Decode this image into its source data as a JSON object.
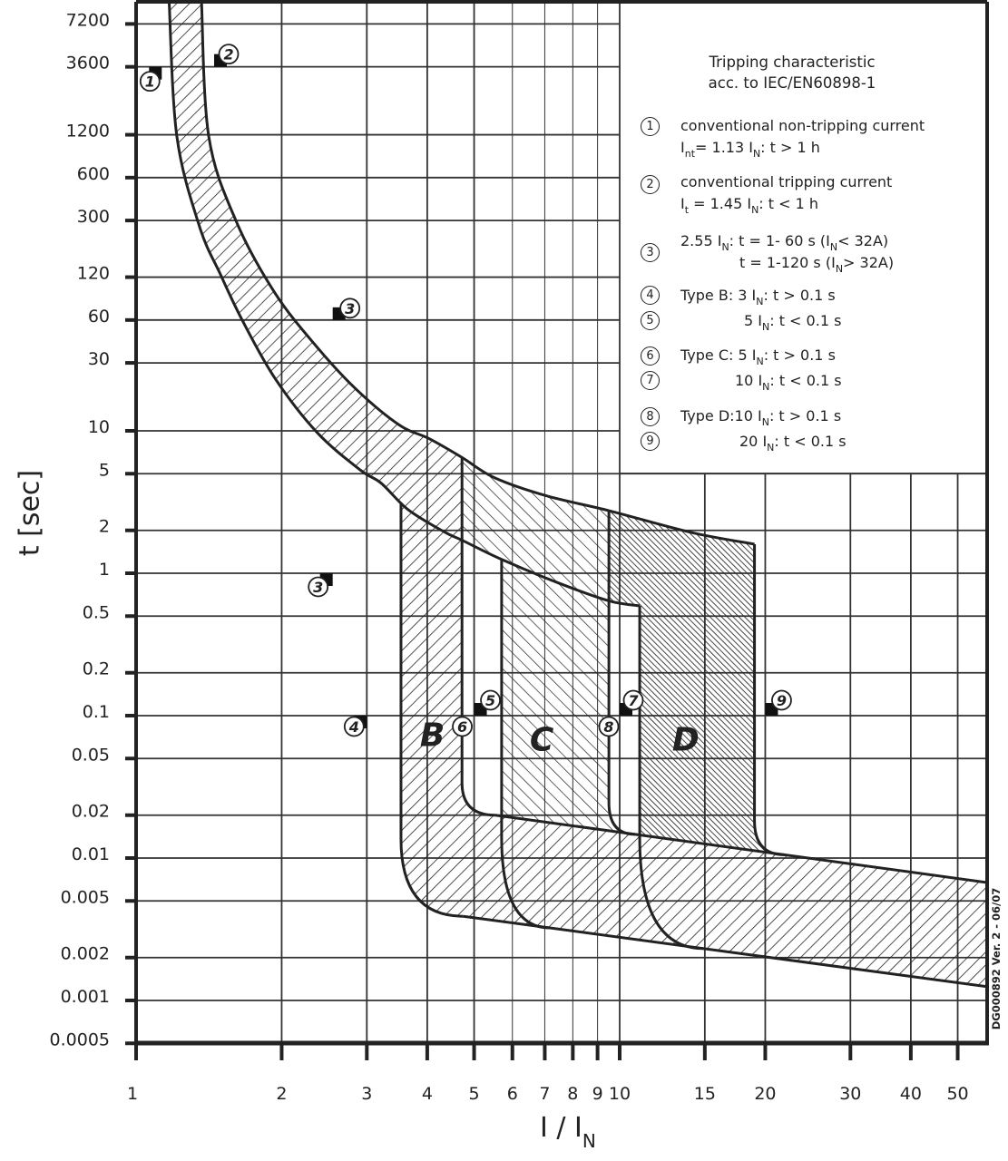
{
  "chart_data": {
    "type": "area",
    "title": [
      "Tripping characteristic",
      "acc. to IEC/EN60898-1"
    ],
    "xlabel": {
      "main": "I / I",
      "sub": "N"
    },
    "ylabel": "t [sec]",
    "x_scale": "log",
    "y_scale": "log",
    "xlim": [
      1,
      57.5
    ],
    "ylim": [
      0.0005,
      10600
    ],
    "grid": true,
    "x_ticks": [
      1,
      2,
      3,
      4,
      5,
      6,
      7,
      8,
      9,
      10,
      15,
      20,
      30,
      40,
      50
    ],
    "x_tick_labels": [
      "1",
      "2",
      "3",
      "4",
      "5",
      "6",
      "7",
      "8",
      "9",
      "10",
      "15",
      "20",
      "30",
      "40",
      "50"
    ],
    "y_ticks": [
      7200,
      3600,
      1200,
      600,
      300,
      120,
      60,
      30,
      10,
      5,
      2,
      1,
      0.5,
      0.2,
      0.1,
      0.05,
      0.02,
      0.01,
      0.005,
      0.002,
      0.001,
      0.0005
    ],
    "y_tick_labels": [
      "7200",
      "3600",
      "1200",
      "600",
      "300",
      "120",
      "60",
      "30",
      "10",
      "5",
      "2",
      "1",
      "0.5",
      "0.2",
      "0.1",
      "0.05",
      "0.02",
      "0.01",
      "0.005",
      "0.002",
      "0.001",
      "0.0005"
    ],
    "thermal_upper": [
      [
        1.365,
        10600
      ],
      [
        1.413,
        1175
      ],
      [
        1.608,
        300
      ],
      [
        1.937,
        92.9
      ],
      [
        2.37,
        38.5
      ],
      [
        2.86,
        19.4
      ],
      [
        3.5,
        11
      ],
      [
        4.04,
        8.8
      ],
      [
        4.72,
        6.5
      ],
      [
        5.5,
        4.7
      ],
      [
        7.05,
        3.5
      ],
      [
        9.5,
        2.75
      ],
      [
        14.1,
        1.93
      ],
      [
        19.0,
        1.6
      ]
    ],
    "thermal_lower": [
      [
        1.17,
        10600
      ],
      [
        1.214,
        1175
      ],
      [
        1.353,
        271
      ],
      [
        1.495,
        125
      ],
      [
        1.658,
        59.8
      ],
      [
        1.937,
        23.4
      ],
      [
        2.37,
        9.7
      ],
      [
        2.91,
        5.3
      ],
      [
        3.21,
        4.3
      ],
      [
        3.65,
        2.8
      ],
      [
        4.34,
        1.95
      ],
      [
        4.73,
        1.7
      ],
      [
        5.7,
        1.25
      ],
      [
        7.5,
        0.85
      ],
      [
        9.5,
        0.64
      ],
      [
        11.0,
        0.59
      ]
    ],
    "instant_band_upper": [
      [
        5.53,
        0.02
      ],
      [
        57.5,
        0.00673
      ]
    ],
    "instant_band_lower": [
      [
        4.75,
        0.0039
      ],
      [
        57.5,
        0.00125
      ]
    ],
    "regions": [
      {
        "label": "B",
        "left": 3.53,
        "left_corner_t": 0.0136,
        "left_corner_end": 4.75,
        "right": 4.72,
        "right_corner_t": 0.0338,
        "right_corner_end": 5.53
      },
      {
        "label": "C",
        "left": 5.7,
        "left_corner_t": 0.0139,
        "left_corner_end": 7.18,
        "right": 9.5,
        "right_corner_t": 0.0245,
        "right_corner_end": 10.77
      },
      {
        "label": "D",
        "left": 11.0,
        "left_corner_t": 0.0139,
        "left_corner_end": 14.9,
        "right": 19.0,
        "right_corner_t": 0.0183,
        "right_corner_end": 21.9
      }
    ],
    "markers": [
      {
        "n": "1",
        "I": 1.13,
        "t": 3600,
        "flag": true
      },
      {
        "n": "2",
        "I": 1.45,
        "t": 3600,
        "flag": true
      },
      {
        "n": "3",
        "I": 2.55,
        "t": 60,
        "flag": true
      },
      {
        "n": "3",
        "I": 2.55,
        "t": 1,
        "flag": true
      },
      {
        "n": "4",
        "I": 3,
        "t": 0.1,
        "flag": true
      },
      {
        "n": "5",
        "I": 5,
        "t": 0.1,
        "flag": true
      },
      {
        "n": "6",
        "I": 5,
        "t": 0.1,
        "flag": false
      },
      {
        "n": "7",
        "I": 10,
        "t": 0.1,
        "flag": true
      },
      {
        "n": "8",
        "I": 10,
        "t": 0.1,
        "flag": false
      },
      {
        "n": "9",
        "I": 20,
        "t": 0.1,
        "flag": true
      }
    ],
    "colors": {
      "line": "#222222",
      "grid": "#333333",
      "background": "#ffffff"
    }
  },
  "legend": {
    "items": [
      {
        "num": "1",
        "lines": [
          [
            {
              "t": "conventional non-tripping current"
            }
          ],
          [
            {
              "t": "I"
            },
            {
              "sub": "nt"
            },
            {
              "t": "= 1.13 I"
            },
            {
              "sub": "N"
            },
            {
              "t": ": t > 1 h"
            }
          ]
        ]
      },
      {
        "num": "2",
        "lines": [
          [
            {
              "t": "conventional tripping current"
            }
          ],
          [
            {
              "t": "I"
            },
            {
              "sub": "t"
            },
            {
              "t": " = 1.45 I"
            },
            {
              "sub": "N"
            },
            {
              "t": ": t < 1 h"
            }
          ]
        ]
      },
      {
        "num": "3",
        "lines": [
          [
            {
              "t": "2.55 I"
            },
            {
              "sub": "N"
            },
            {
              "t": ": t = 1- 60 s (I"
            },
            {
              "sub": "N"
            },
            {
              "t": "< 32A)"
            }
          ],
          [
            {
              "t": "t = 1-120 s (I"
            },
            {
              "sub": "N"
            },
            {
              "t": "> 32A)"
            }
          ]
        ]
      },
      {
        "num": "4",
        "lines": [
          [
            {
              "t": "Type B: 3 I"
            },
            {
              "sub": "N"
            },
            {
              "t": ": t > 0.1 s"
            }
          ]
        ]
      },
      {
        "num": "5",
        "lines": [
          [
            {
              "t": "5 I"
            },
            {
              "sub": "N"
            },
            {
              "t": ": t < 0.1 s"
            }
          ]
        ]
      },
      {
        "num": "6",
        "lines": [
          [
            {
              "t": "Type C: 5 I"
            },
            {
              "sub": "N"
            },
            {
              "t": ": t > 0.1 s"
            }
          ]
        ]
      },
      {
        "num": "7",
        "lines": [
          [
            {
              "t": "10 I"
            },
            {
              "sub": "N"
            },
            {
              "t": ": t < 0.1 s"
            }
          ]
        ]
      },
      {
        "num": "8",
        "lines": [
          [
            {
              "t": "Type D:10 I"
            },
            {
              "sub": "N"
            },
            {
              "t": ": t > 0.1 s"
            }
          ]
        ]
      },
      {
        "num": "9",
        "lines": [
          [
            {
              "t": "20 I"
            },
            {
              "sub": "N"
            },
            {
              "t": ": t < 0.1 s"
            }
          ]
        ]
      }
    ]
  },
  "version": "DG000892 Ver. 2 - 06/07"
}
